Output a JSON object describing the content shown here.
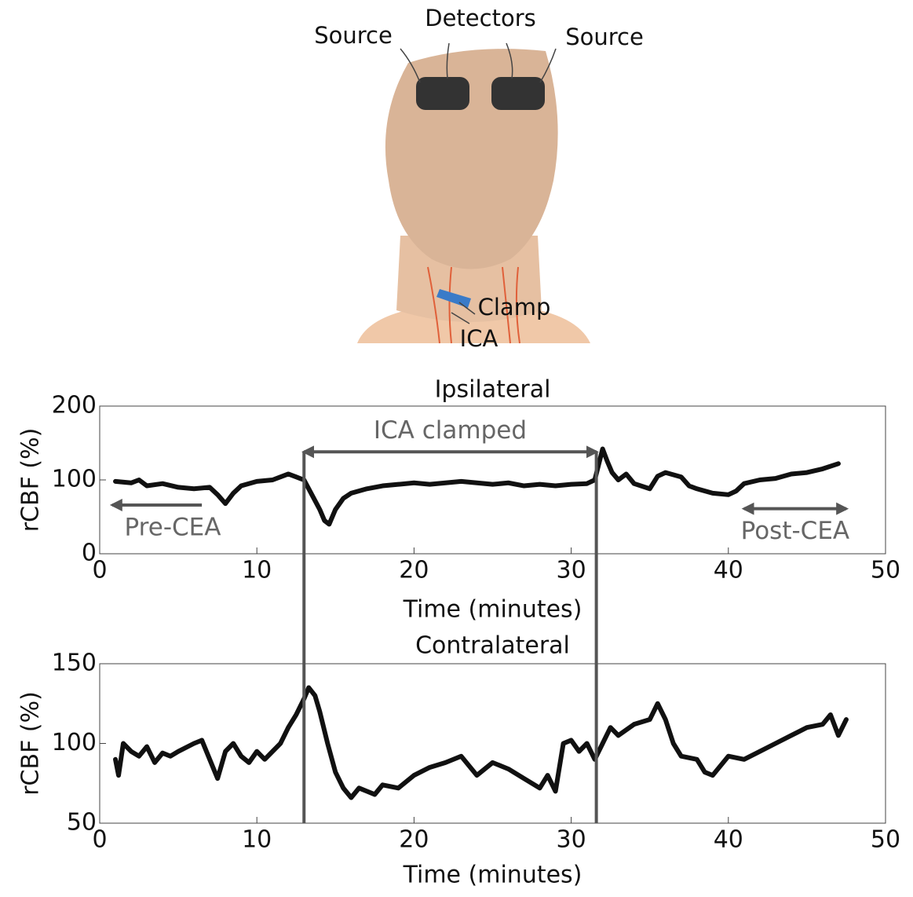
{
  "illustration": {
    "labels": [
      "Source",
      "Detectors",
      "Source",
      "Clamp",
      "ICA"
    ]
  },
  "chart_data": [
    {
      "type": "line",
      "title": "Ipsilateral",
      "xlabel": "Time (minutes)",
      "ylabel": "rCBF (%)",
      "xlim": [
        0,
        50
      ],
      "xticks": [
        0,
        10,
        20,
        30,
        40,
        50
      ],
      "ylim": [
        0,
        200
      ],
      "yticks": [
        0,
        100,
        200
      ],
      "vlines": [
        13,
        31.6
      ],
      "annotations": [
        {
          "text": "ICA clamped",
          "x": [
            13,
            31.6
          ],
          "y": 138
        },
        {
          "text": "Pre-CEA",
          "x": [
            6.5,
            0.8
          ],
          "y": 66
        },
        {
          "text": "Post-CEA",
          "x": [
            41,
            47.5
          ],
          "y": 61
        }
      ],
      "series": [
        {
          "name": "Ipsilateral",
          "color": "#111111",
          "x": [
            1,
            2,
            2.5,
            3,
            4,
            5,
            6,
            7,
            7.5,
            8,
            8.5,
            9,
            10,
            11,
            12,
            12.5,
            13,
            13.5,
            14,
            14.3,
            14.6,
            15,
            15.5,
            16,
            17,
            18,
            19,
            20,
            21,
            22,
            23,
            24,
            25,
            26,
            27,
            28,
            29,
            30,
            31,
            31.5,
            32,
            32.3,
            32.6,
            33,
            33.5,
            34,
            35,
            35.5,
            36,
            37,
            37.5,
            38,
            39,
            40,
            40.5,
            41,
            42,
            43,
            44,
            45,
            46,
            47
          ],
          "values": [
            98,
            96,
            100,
            92,
            95,
            90,
            88,
            90,
            80,
            68,
            82,
            92,
            98,
            100,
            108,
            104,
            100,
            80,
            60,
            45,
            40,
            60,
            75,
            82,
            88,
            92,
            94,
            96,
            94,
            96,
            98,
            96,
            94,
            96,
            92,
            94,
            92,
            94,
            95,
            100,
            142,
            125,
            110,
            100,
            108,
            95,
            88,
            105,
            110,
            104,
            92,
            88,
            82,
            80,
            85,
            95,
            100,
            102,
            108,
            110,
            115,
            122
          ]
        }
      ]
    },
    {
      "type": "line",
      "title": "Contralateral",
      "xlabel": "Time (minutes)",
      "ylabel": "rCBF (%)",
      "xlim": [
        0,
        50
      ],
      "xticks": [
        0,
        10,
        20,
        30,
        40,
        50
      ],
      "ylim": [
        50,
        150
      ],
      "yticks": [
        50,
        100,
        150
      ],
      "series": [
        {
          "name": "Contralateral",
          "color": "#111111",
          "x": [
            1,
            1.2,
            1.5,
            2,
            2.5,
            3,
            3.5,
            4,
            4.5,
            5,
            6,
            6.5,
            7,
            7.5,
            8,
            8.5,
            9,
            9.5,
            10,
            10.5,
            11,
            11.5,
            12,
            12.5,
            13,
            13.3,
            13.7,
            14,
            14.5,
            15,
            15.5,
            16,
            16.5,
            17,
            17.5,
            18,
            19,
            20,
            21,
            22,
            23,
            24,
            25,
            26,
            27,
            28,
            28.5,
            29,
            29.5,
            30,
            30.5,
            31,
            31.5,
            32,
            32.5,
            33,
            34,
            35,
            35.5,
            36,
            36.5,
            37,
            38,
            38.5,
            39,
            40,
            41,
            42,
            43,
            44,
            45,
            46,
            46.5,
            47,
            47.5
          ],
          "values": [
            90,
            80,
            100,
            95,
            92,
            98,
            88,
            94,
            92,
            95,
            100,
            102,
            90,
            78,
            95,
            100,
            92,
            88,
            95,
            90,
            95,
            100,
            110,
            118,
            128,
            135,
            130,
            120,
            100,
            82,
            72,
            66,
            72,
            70,
            68,
            74,
            72,
            80,
            85,
            88,
            92,
            80,
            88,
            84,
            78,
            72,
            80,
            70,
            100,
            102,
            95,
            100,
            90,
            100,
            110,
            105,
            112,
            115,
            125,
            115,
            100,
            92,
            90,
            82,
            80,
            92,
            90,
            95,
            100,
            105,
            110,
            112,
            118,
            105,
            115
          ]
        }
      ]
    }
  ]
}
